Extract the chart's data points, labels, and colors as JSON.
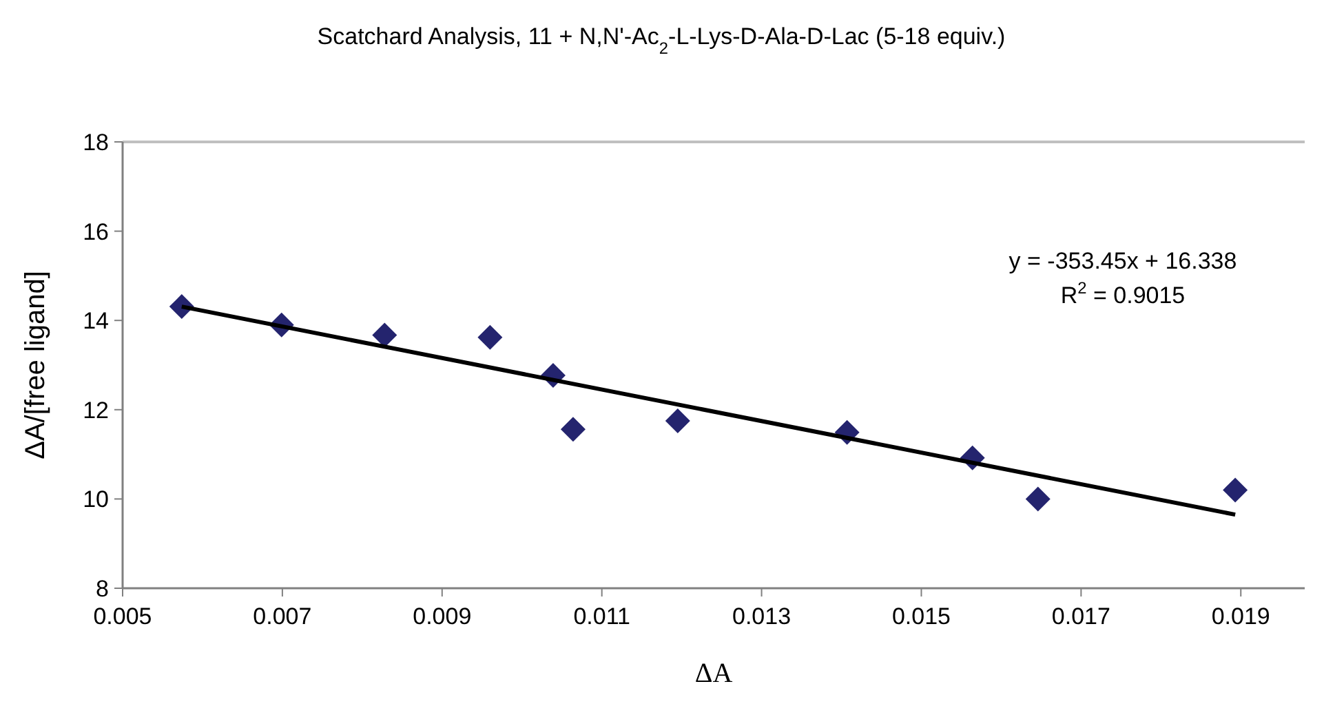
{
  "chart_data": {
    "type": "scatter",
    "title": "Scatchard Analysis, 11 + N,N'-Ac$_{2}$-L-Lys-D-Ala-D-Lac (5-18 equiv.)",
    "xlabel": "ΔA",
    "ylabel": "ΔA/[free ligand]",
    "x": [
      0.00574,
      0.00699,
      0.00828,
      0.0096,
      0.01039,
      0.01064,
      0.01195,
      0.01407,
      0.01564,
      0.01646,
      0.01893
    ],
    "series": [
      {
        "type": "scatter",
        "color": "#24246e",
        "marker": "diamond",
        "values": [
          14.31,
          13.9,
          13.67,
          13.62,
          12.77,
          11.56,
          11.75,
          11.49,
          10.92,
          10.0,
          10.2
        ]
      },
      {
        "type": "line",
        "color": "#000000",
        "x": [
          0.00574,
          0.01893
        ],
        "values": [
          14.31,
          9.65
        ]
      }
    ],
    "xlim": [
      0.005,
      0.0198
    ],
    "xticks": [
      0.005,
      0.007,
      0.009,
      0.011,
      0.013,
      0.015,
      0.017,
      0.019
    ],
    "ylim": [
      8,
      18
    ],
    "yticks": [
      8,
      10,
      12,
      14,
      16,
      18
    ],
    "grid": false,
    "annotations": [
      "y = -353.45x + 16.338",
      "R$^{2}$ = 0.9015"
    ]
  }
}
